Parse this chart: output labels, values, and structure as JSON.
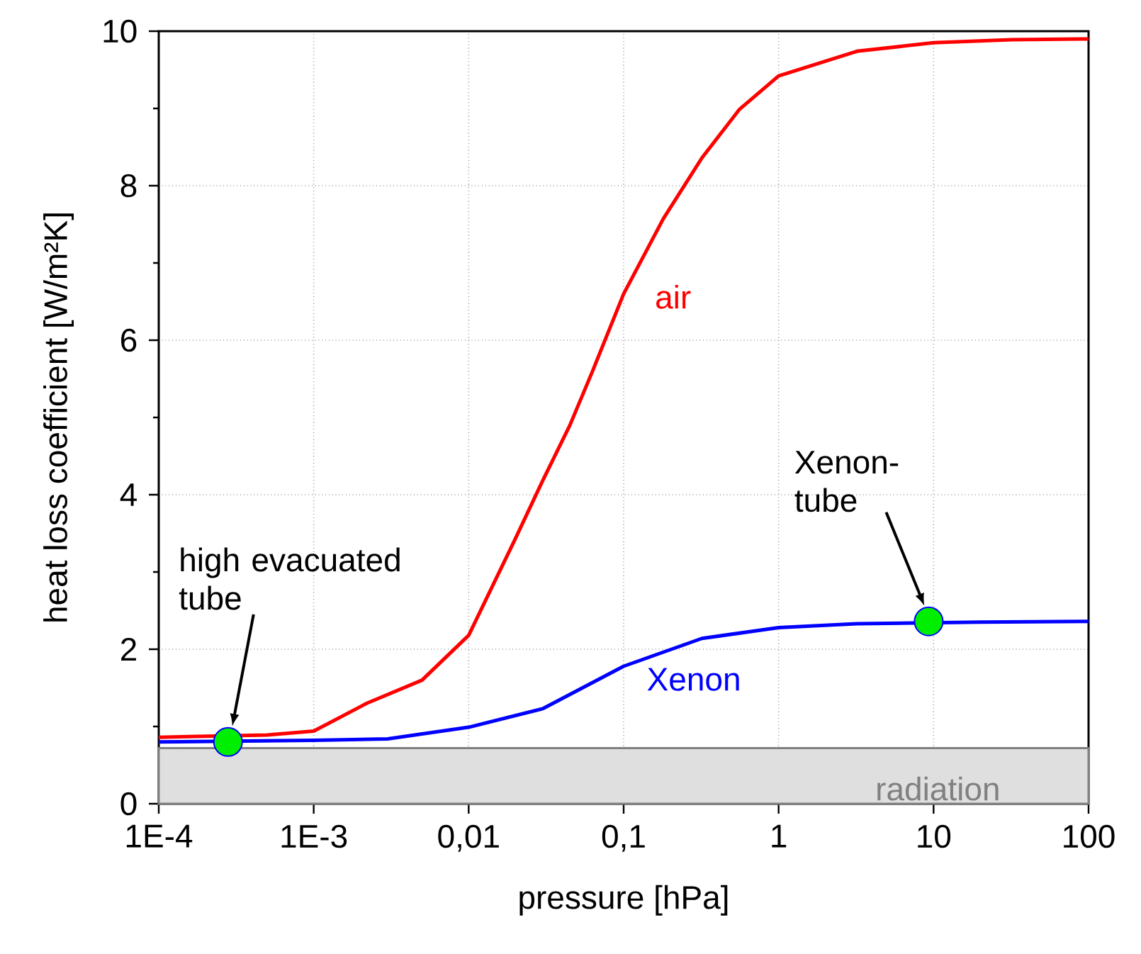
{
  "chart_data": {
    "type": "line",
    "xlabel": "pressure [hPa]",
    "ylabel": "heat loss coefficient [W/m²K]",
    "log": "x",
    "xlim": [
      0.0001,
      100
    ],
    "ylim": [
      0,
      10
    ],
    "xticks": [
      {
        "value": 0.0001,
        "label": "1E-4"
      },
      {
        "value": 0.001,
        "label": "1E-3"
      },
      {
        "value": 0.01,
        "label": "0,01"
      },
      {
        "value": 0.1,
        "label": "0,1"
      },
      1,
      10,
      100
    ],
    "yticks": [
      0,
      2,
      4,
      6,
      8,
      10
    ],
    "grid": true,
    "series": [
      {
        "name": "air",
        "color": "#ff0000",
        "x": [
          0.0001,
          0.0005,
          0.001,
          0.0022,
          0.005,
          0.01,
          0.02,
          0.03,
          0.045,
          0.063,
          0.1,
          0.18,
          0.32,
          0.56,
          1,
          3.2,
          10,
          32,
          100
        ],
        "values": [
          0.86,
          0.89,
          0.94,
          1.3,
          1.6,
          2.18,
          3.43,
          4.18,
          4.9,
          5.6,
          6.6,
          7.57,
          8.36,
          8.99,
          9.42,
          9.74,
          9.85,
          9.89,
          9.9
        ]
      },
      {
        "name": "Xenon",
        "color": "#0000ff",
        "x": [
          0.0001,
          0.001,
          0.003,
          0.01,
          0.03,
          0.1,
          0.32,
          1,
          3.2,
          20,
          100
        ],
        "values": [
          0.8,
          0.82,
          0.84,
          0.99,
          1.23,
          1.78,
          2.14,
          2.28,
          2.33,
          2.35,
          2.36
        ]
      },
      {
        "type": "scatter",
        "color": "#00ee00",
        "marker": "circle",
        "x": [
          0.00028,
          9.3
        ],
        "values": [
          0.8,
          2.36
        ]
      }
    ],
    "bands": [
      {
        "axis": "y",
        "from": 0,
        "to": 0.72,
        "label": "radiation",
        "color": "#808080"
      }
    ],
    "annotations": [
      "high evacuated tube",
      "Xenon-tube"
    ]
  }
}
